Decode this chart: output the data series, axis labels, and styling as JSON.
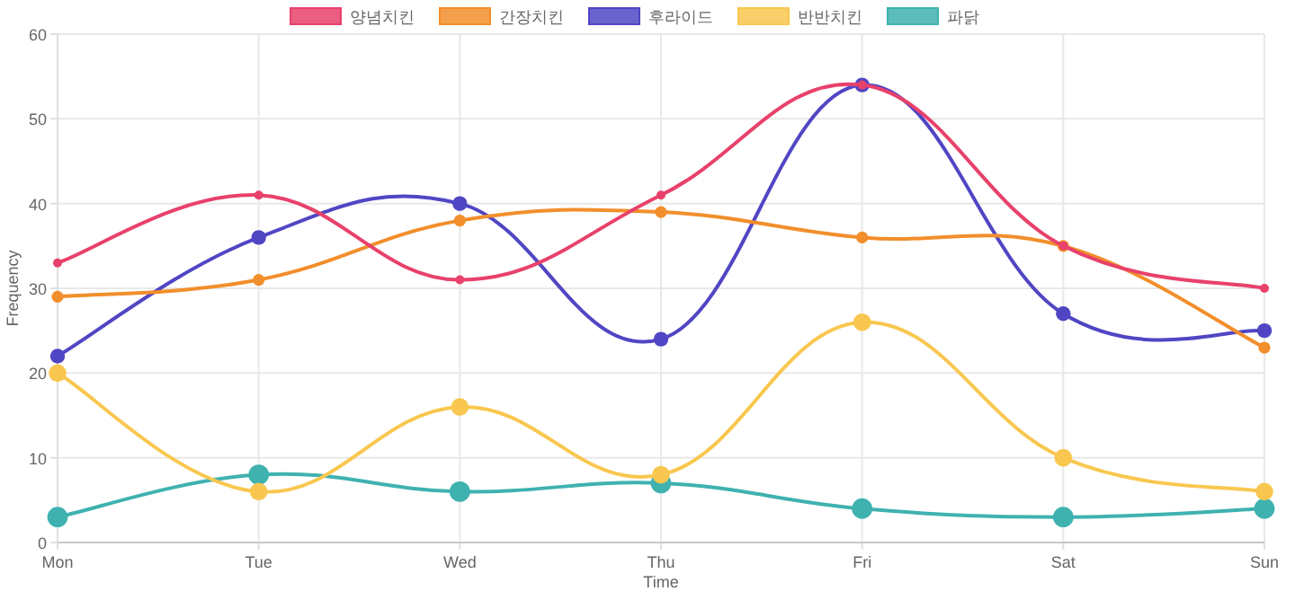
{
  "chart_data": {
    "type": "line",
    "xlabel": "Time",
    "ylabel": "Frequency",
    "categories": [
      "Mon",
      "Tue",
      "Wed",
      "Thu",
      "Fri",
      "Sat",
      "Sun"
    ],
    "series": [
      {
        "name": "양념치킨",
        "color": "#e8416b",
        "values": [
          33,
          41,
          31,
          41,
          54,
          35,
          30
        ]
      },
      {
        "name": "간장치킨",
        "color": "#f28e2b",
        "values": [
          29,
          31,
          38,
          39,
          36,
          35,
          23
        ]
      },
      {
        "name": "후라이드",
        "color": "#5046c4",
        "values": [
          22,
          36,
          40,
          24,
          54,
          27,
          25
        ]
      },
      {
        "name": "반반치킨",
        "color": "#f9c74f",
        "values": [
          20,
          6,
          16,
          8,
          26,
          10,
          6
        ]
      },
      {
        "name": "파닭",
        "color": "#3fb2b0",
        "values": [
          3,
          8,
          6,
          7,
          4,
          3,
          4
        ]
      }
    ],
    "ylim": [
      0,
      60
    ],
    "yticks": [
      0,
      10,
      20,
      30,
      40,
      50,
      60
    ],
    "grid": true,
    "legend": "top",
    "marker": "circle",
    "line_style": "solid"
  }
}
